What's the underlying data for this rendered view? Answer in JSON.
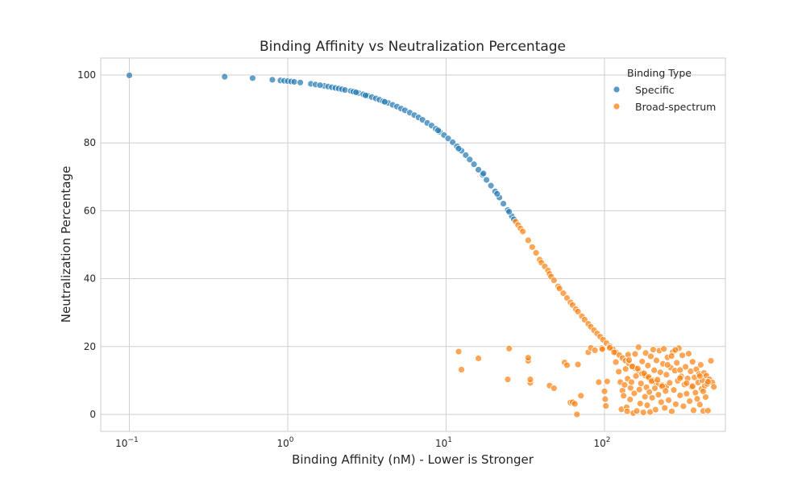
{
  "chart_data": {
    "type": "scatter",
    "title": "Binding Affinity vs Neutralization Percentage",
    "xlabel": "Binding Affinity (nM) - Lower is Stronger",
    "ylabel": "Neutralization Percentage",
    "xscale": "log",
    "xlim": [
      0.066,
      580
    ],
    "ylim": [
      -5,
      105
    ],
    "x_ticks": [
      {
        "value": 0.1,
        "base": "10",
        "exp": "−1"
      },
      {
        "value": 1,
        "base": "10",
        "exp": "0"
      },
      {
        "value": 10,
        "base": "10",
        "exp": "1"
      },
      {
        "value": 100,
        "base": "10",
        "exp": "2"
      }
    ],
    "y_ticks": [
      0,
      20,
      40,
      60,
      80,
      100
    ],
    "grid": true,
    "legend": {
      "title": "Binding Type",
      "placement": "top-right"
    },
    "series": [
      {
        "name": "Specific",
        "color": "#1f77b4",
        "points": [
          [
            0.1,
            99.9
          ],
          [
            0.4,
            99.5
          ],
          [
            0.6,
            99.1
          ],
          [
            0.8,
            98.6
          ],
          [
            0.9,
            98.4
          ],
          [
            0.95,
            98.3
          ],
          [
            1.0,
            98.2
          ],
          [
            1.05,
            98.1
          ],
          [
            1.1,
            98.0
          ],
          [
            1.2,
            97.8
          ],
          [
            1.4,
            97.4
          ],
          [
            1.5,
            97.2
          ],
          [
            1.7,
            96.8
          ],
          [
            1.8,
            96.6
          ],
          [
            1.9,
            96.4
          ],
          [
            2.0,
            96.2
          ],
          [
            2.1,
            96.0
          ],
          [
            2.2,
            95.8
          ],
          [
            2.3,
            95.6
          ],
          [
            2.5,
            95.3
          ],
          [
            2.6,
            95.1
          ],
          [
            2.8,
            94.7
          ],
          [
            3.0,
            94.3
          ],
          [
            3.2,
            93.9
          ],
          [
            3.4,
            93.5
          ],
          [
            3.6,
            93.1
          ],
          [
            3.8,
            92.7
          ],
          [
            4.0,
            92.3
          ],
          [
            4.3,
            91.8
          ],
          [
            4.6,
            91.2
          ],
          [
            4.9,
            90.7
          ],
          [
            5.2,
            90.1
          ],
          [
            5.5,
            89.6
          ],
          [
            5.9,
            88.9
          ],
          [
            6.3,
            88.2
          ],
          [
            6.7,
            87.5
          ],
          [
            7.1,
            86.8
          ],
          [
            7.6,
            85.9
          ],
          [
            8.1,
            85.1
          ],
          [
            8.6,
            84.2
          ],
          [
            9.1,
            83.3
          ],
          [
            9.7,
            82.3
          ],
          [
            10.3,
            81.3
          ],
          [
            11.0,
            80.2
          ],
          [
            11.7,
            79.0
          ],
          [
            12.5,
            77.7
          ],
          [
            13.3,
            76.4
          ],
          [
            14.1,
            75.1
          ],
          [
            15.0,
            73.7
          ],
          [
            16.0,
            72.1
          ],
          [
            17.0,
            70.6
          ],
          [
            18.0,
            69.1
          ],
          [
            19.2,
            67.4
          ],
          [
            20.4,
            65.7
          ],
          [
            21.7,
            63.9
          ],
          [
            23.0,
            62.1
          ],
          [
            24.5,
            60.2
          ],
          [
            26.0,
            58.4
          ],
          [
            26.8,
            57.5
          ],
          [
            17.2,
            71.0
          ],
          [
            21.0,
            65.0
          ],
          [
            25.0,
            59.7
          ],
          [
            12.0,
            78.3
          ],
          [
            8.9,
            83.7
          ],
          [
            4.1,
            92.1
          ],
          [
            3.1,
            94.0
          ],
          [
            1.6,
            97.0
          ],
          [
            2.7,
            94.9
          ]
        ]
      },
      {
        "name": "Broad-spectrum",
        "color": "#ff7f0e",
        "points": [
          [
            27.5,
            56.8
          ],
          [
            28.5,
            55.8
          ],
          [
            29.5,
            54.8
          ],
          [
            30.5,
            53.9
          ],
          [
            33,
            51.3
          ],
          [
            35,
            49.3
          ],
          [
            37,
            47.6
          ],
          [
            39,
            45.6
          ],
          [
            40,
            44.7
          ],
          [
            42,
            43.6
          ],
          [
            44,
            42.4
          ],
          [
            45,
            41.4
          ],
          [
            46,
            40.6
          ],
          [
            48,
            39.5
          ],
          [
            51,
            37.7
          ],
          [
            52,
            37.1
          ],
          [
            55,
            35.7
          ],
          [
            58,
            34.3
          ],
          [
            61,
            33.0
          ],
          [
            63,
            32.2
          ],
          [
            66,
            31.0
          ],
          [
            68,
            30.3
          ],
          [
            72,
            28.9
          ],
          [
            75,
            27.9
          ],
          [
            79,
            26.7
          ],
          [
            82,
            25.8
          ],
          [
            86,
            24.8
          ],
          [
            90,
            23.8
          ],
          [
            94,
            22.9
          ],
          [
            98,
            22.0
          ],
          [
            103,
            21.0
          ],
          [
            108,
            20.0
          ],
          [
            113,
            19.2
          ],
          [
            118,
            18.3
          ],
          [
            124,
            17.5
          ],
          [
            130,
            16.6
          ],
          [
            136,
            15.8
          ],
          [
            143,
            15.0
          ],
          [
            150,
            14.2
          ],
          [
            157,
            13.5
          ],
          [
            165,
            12.7
          ],
          [
            173,
            12.0
          ],
          [
            181,
            11.4
          ],
          [
            190,
            10.7
          ],
          [
            200,
            10.1
          ],
          [
            210,
            9.5
          ],
          [
            220,
            9.0
          ],
          [
            232,
            8.6
          ],
          [
            245,
            8.2
          ],
          [
            12,
            18.5
          ],
          [
            12.5,
            13.2
          ],
          [
            16,
            16.5
          ],
          [
            25,
            19.4
          ],
          [
            24.5,
            10.3
          ],
          [
            33,
            15.8
          ],
          [
            33,
            16.7
          ],
          [
            34,
            9.3
          ],
          [
            34,
            10.3
          ],
          [
            45,
            8.5
          ],
          [
            48,
            7.7
          ],
          [
            56,
            15.3
          ],
          [
            58,
            14.5
          ],
          [
            61,
            3.5
          ],
          [
            63,
            3.6
          ],
          [
            65,
            3.1
          ],
          [
            67,
            0.0
          ],
          [
            68,
            14.7
          ],
          [
            71,
            5.5
          ],
          [
            79,
            18.3
          ],
          [
            82,
            19.6
          ],
          [
            87,
            18.9
          ],
          [
            92,
            9.5
          ],
          [
            96,
            19.5
          ],
          [
            97,
            19.2
          ],
          [
            100,
            6.8
          ],
          [
            101,
            4.5
          ],
          [
            102,
            2.5
          ],
          [
            104,
            9.7
          ],
          [
            108,
            19.6
          ],
          [
            115,
            18.3
          ],
          [
            118,
            15.4
          ],
          [
            123,
            12.6
          ],
          [
            126,
            9.5
          ],
          [
            128,
            1.5
          ],
          [
            130,
            7.0
          ],
          [
            132,
            5.5
          ],
          [
            134,
            8.7
          ],
          [
            136,
            13.4
          ],
          [
            138,
            2.1
          ],
          [
            139,
            0.9
          ],
          [
            140,
            10.5
          ],
          [
            141,
            17.6
          ],
          [
            143,
            16.0
          ],
          [
            145,
            4.4
          ],
          [
            146,
            7.8
          ],
          [
            148,
            9.5
          ],
          [
            150,
            14.1
          ],
          [
            152,
            0.4
          ],
          [
            154,
            6.2
          ],
          [
            156,
            17.8
          ],
          [
            158,
            11.3
          ],
          [
            160,
            1.0
          ],
          [
            162,
            13.5
          ],
          [
            164,
            19.8
          ],
          [
            166,
            7.3
          ],
          [
            168,
            3.2
          ],
          [
            170,
            9.1
          ],
          [
            173,
            15.6
          ],
          [
            176,
            0.6
          ],
          [
            178,
            12.1
          ],
          [
            180,
            5.2
          ],
          [
            182,
            18.1
          ],
          [
            184,
            8.0
          ],
          [
            186,
            2.7
          ],
          [
            188,
            14.4
          ],
          [
            190,
            11.0
          ],
          [
            192,
            6.6
          ],
          [
            194,
            0.7
          ],
          [
            196,
            17.1
          ],
          [
            198,
            9.8
          ],
          [
            200,
            4.9
          ],
          [
            203,
            19.1
          ],
          [
            206,
            13.0
          ],
          [
            208,
            7.7
          ],
          [
            210,
            1.4
          ],
          [
            213,
            15.9
          ],
          [
            216,
            10.2
          ],
          [
            219,
            5.8
          ],
          [
            222,
            18.8
          ],
          [
            225,
            12.4
          ],
          [
            228,
            3.6
          ],
          [
            231,
            8.3
          ],
          [
            234,
            14.9
          ],
          [
            237,
            19.3
          ],
          [
            240,
            1.9
          ],
          [
            243,
            6.9
          ],
          [
            246,
            11.7
          ],
          [
            250,
            16.8
          ],
          [
            254,
            4.2
          ],
          [
            258,
            9.3
          ],
          [
            262,
            13.8
          ],
          [
            266,
            0.9
          ],
          [
            270,
            18.4
          ],
          [
            274,
            7.2
          ],
          [
            278,
            12.9
          ],
          [
            282,
            3.0
          ],
          [
            286,
            15.2
          ],
          [
            290,
            9.9
          ],
          [
            295,
            19.5
          ],
          [
            300,
            5.6
          ],
          [
            305,
            11.2
          ],
          [
            310,
            17.4
          ],
          [
            315,
            2.4
          ],
          [
            320,
            8.8
          ],
          [
            325,
            14.0
          ],
          [
            330,
            6.1
          ],
          [
            335,
            10.6
          ],
          [
            340,
            17.9
          ],
          [
            345,
            3.9
          ],
          [
            350,
            12.7
          ],
          [
            355,
            8.1
          ],
          [
            360,
            15.5
          ],
          [
            365,
            1.2
          ],
          [
            370,
            10.9
          ],
          [
            375,
            6.4
          ],
          [
            380,
            13.3
          ],
          [
            385,
            4.6
          ],
          [
            390,
            9.4
          ],
          [
            395,
            11.9
          ],
          [
            400,
            2.9
          ],
          [
            405,
            14.6
          ],
          [
            410,
            7.5
          ],
          [
            415,
            10.0
          ],
          [
            420,
            1.0
          ],
          [
            425,
            12.2
          ],
          [
            430,
            8.4
          ],
          [
            435,
            5.1
          ],
          [
            440,
            11.4
          ],
          [
            445,
            9.0
          ],
          [
            450,
            1.1
          ],
          [
            460,
            10.3
          ],
          [
            470,
            15.8
          ],
          [
            480,
            9.4
          ],
          [
            490,
            8.1
          ],
          [
            250,
            14.6
          ],
          [
            265,
            17.2
          ],
          [
            280,
            19.0
          ],
          [
            300,
            10.7
          ],
          [
            330,
            9.2
          ],
          [
            360,
            8.3
          ],
          [
            400,
            11.3
          ],
          [
            420,
            6.8
          ],
          [
            450,
            9.6
          ],
          [
            300,
            13.1
          ]
        ]
      }
    ]
  }
}
